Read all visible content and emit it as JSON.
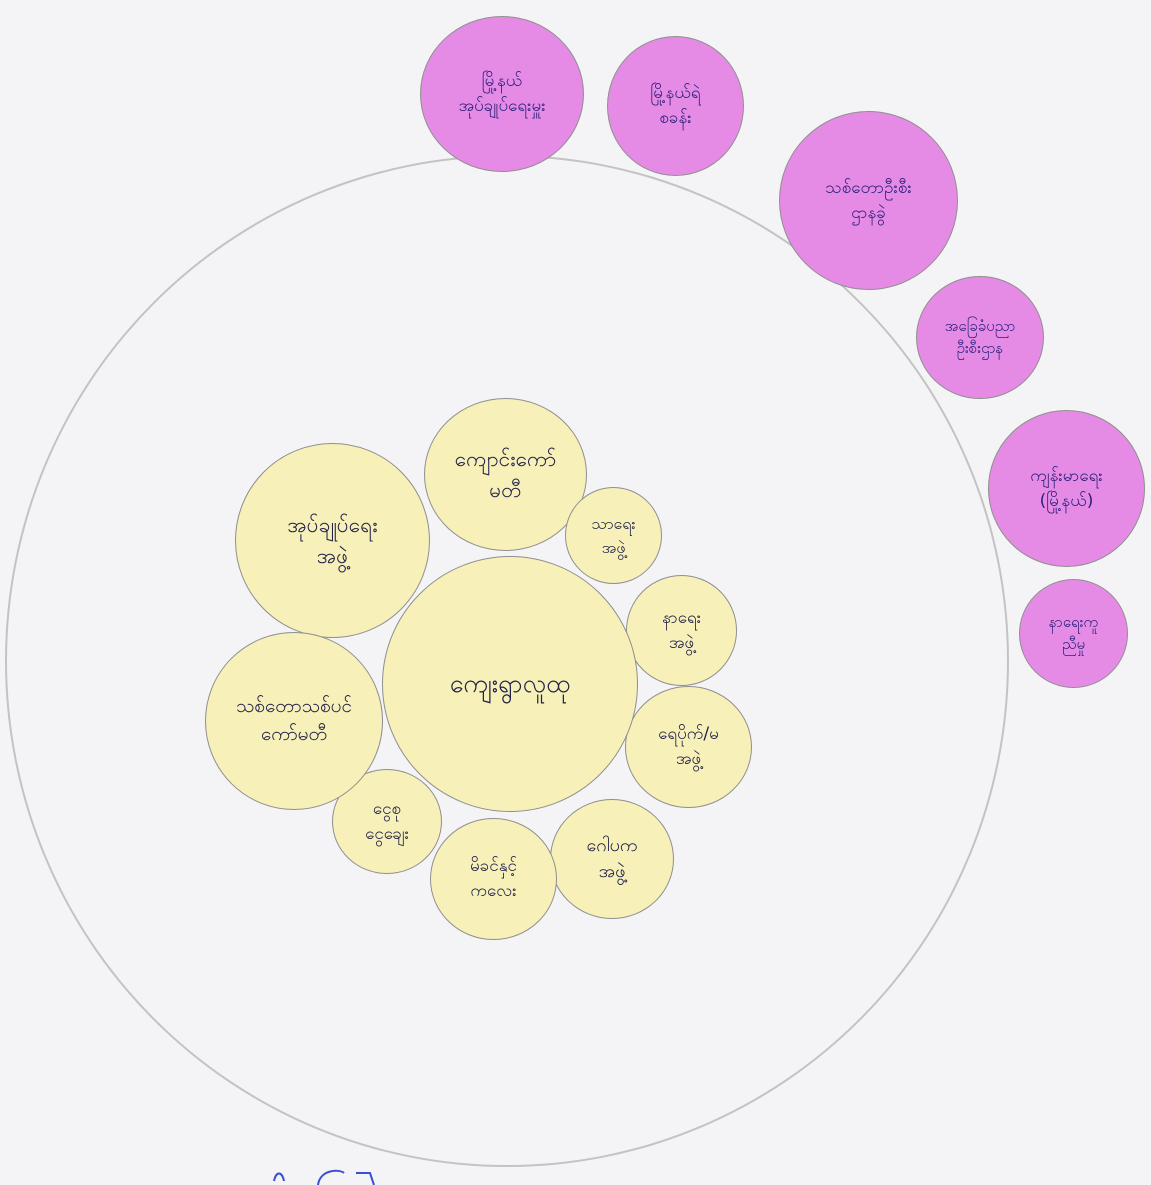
{
  "diagram": {
    "center": {
      "label": "ကျေးရွာလူထု"
    },
    "community_groups": [
      {
        "id": "youth-group",
        "label": "အုပ်ချုပ်ရေး\nအဖွဲ့"
      },
      {
        "id": "monastery",
        "label": "ကျောင်းကော်\nမတီ"
      },
      {
        "id": "social-group",
        "label": "သာရေး\nအဖွဲ့"
      },
      {
        "id": "funeral-group",
        "label": "နာရေး\nအဖွဲ့"
      },
      {
        "id": "water-group",
        "label": "ရေပိုက်/မ\nအဖွဲ့"
      },
      {
        "id": "religious-group",
        "label": "ဂေါပက\nအဖွဲ့"
      },
      {
        "id": "women-group",
        "label": "မိခင်နှင့်\nကလေး"
      },
      {
        "id": "savings-group",
        "label": "ငွေစု\nငွေချေး"
      },
      {
        "id": "forest-committee",
        "label": "သစ်တောသစ်ပင်\nကော်မတီ"
      }
    ],
    "external_actors": [
      {
        "id": "township-admin",
        "label": "မြို့နယ်\nအုပ်ချုပ်ရေးမှူး"
      },
      {
        "id": "township-hospital",
        "label": "မြို့နယ်ရဲ\nစခန်း"
      },
      {
        "id": "forest-dept",
        "label": "သစ်တောဦးစီး\nဌာနခွဲ"
      },
      {
        "id": "education-dept",
        "label": "အခြေခံပညာ\nဦးစီးဌာန"
      },
      {
        "id": "health-dept",
        "label": "ကျန်းမာရေး\n(မြို့နယ်)"
      },
      {
        "id": "ngo",
        "label": "နာရေးကူ\nညီမှု"
      }
    ]
  }
}
